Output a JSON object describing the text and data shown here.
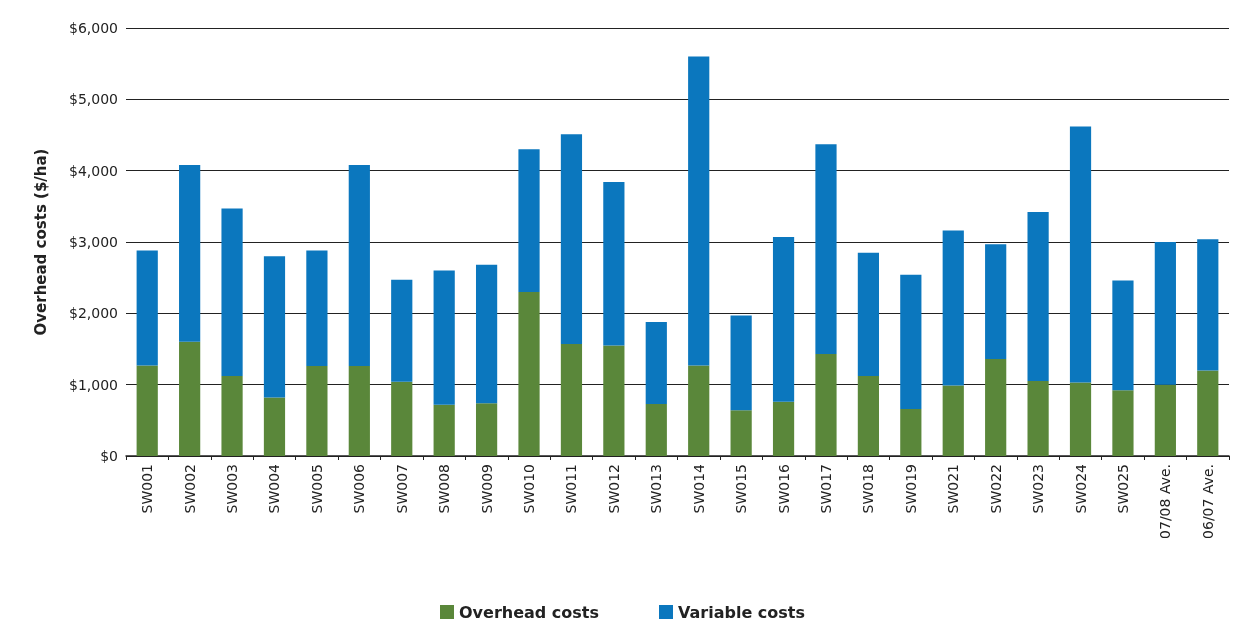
{
  "chart_data": {
    "type": "bar",
    "stacked": true,
    "ylabel": "Overhead costs ($/ha)",
    "categories": [
      "SW001",
      "SW002",
      "SW003",
      "SW004",
      "SW005",
      "SW006",
      "SW007",
      "SW008",
      "SW009",
      "SW010",
      "SW011",
      "SW012",
      "SW013",
      "SW014",
      "SW015",
      "SW016",
      "SW017",
      "SW018",
      "SW019",
      "SW021",
      "SW022",
      "SW023",
      "SW024",
      "SW025",
      "07/08 Ave.",
      "06/07 Ave."
    ],
    "series": [
      {
        "name": "Overhead costs",
        "color": "#5a873a",
        "values": [
          1270,
          1600,
          1120,
          820,
          1260,
          1260,
          1040,
          720,
          740,
          2300,
          1570,
          1550,
          730,
          1270,
          640,
          760,
          1430,
          1120,
          660,
          990,
          1360,
          1050,
          1030,
          920,
          1000,
          1200
        ]
      },
      {
        "name": "Variable costs",
        "color": "#0b77be",
        "values": [
          1610,
          2480,
          2350,
          1980,
          1620,
          2820,
          1430,
          1880,
          1940,
          2000,
          2940,
          2290,
          1150,
          4330,
          1330,
          2310,
          2940,
          1730,
          1880,
          2170,
          1610,
          2370,
          3590,
          1540,
          2000,
          1840
        ]
      }
    ],
    "ylim": [
      0,
      6000
    ],
    "yticks": [
      {
        "value": 0,
        "label": "$0"
      },
      {
        "value": 1000,
        "label": "$1,000"
      },
      {
        "value": 2000,
        "label": "$2,000"
      },
      {
        "value": 3000,
        "label": "$3,000"
      },
      {
        "value": 4000,
        "label": "$4,000"
      },
      {
        "value": 5000,
        "label": "$5,000"
      },
      {
        "value": 6000,
        "label": "$6,000"
      }
    ],
    "grid": "y",
    "legend": "bottom"
  }
}
